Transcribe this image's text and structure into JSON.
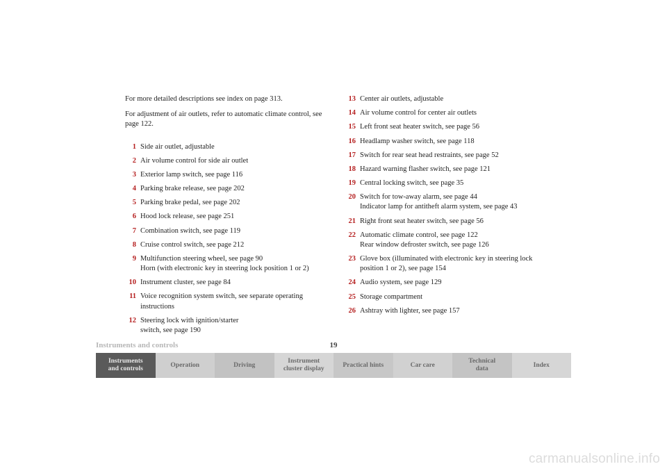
{
  "colors": {
    "accent": "#b51f1f",
    "text": "#222222",
    "footer_label": "#b7b7b7",
    "tab_text": "#6a6a6a",
    "tab_active_bg": "#5a5a5a",
    "tab_active_text": "#e8e8e8",
    "watermark": "#dcdcdc",
    "tab_shades": [
      "#5a5a5a",
      "#cfcfcf",
      "#c2c2c2",
      "#d6d6d6",
      "#c7c7c7",
      "#d1d1d1",
      "#c4c4c4",
      "#d6d6d6"
    ]
  },
  "intro": {
    "p1": "For more detailed descriptions see index on page 313.",
    "p2": "For adjustment of air outlets, refer to automatic climate control, see page 122."
  },
  "left_items": [
    {
      "n": "1",
      "t": "Side air outlet, adjustable"
    },
    {
      "n": "2",
      "t": "Air volume control for side air outlet"
    },
    {
      "n": "3",
      "t": "Exterior lamp switch, see page 116"
    },
    {
      "n": "4",
      "t": "Parking brake release, see page 202"
    },
    {
      "n": "5",
      "t": "Parking brake pedal, see page 202"
    },
    {
      "n": "6",
      "t": "Hood lock release, see page 251"
    },
    {
      "n": "7",
      "t": "Combination switch, see page 119"
    },
    {
      "n": "8",
      "t": "Cruise control switch, see page 212"
    },
    {
      "n": "9",
      "t": "Multifunction steering wheel, see page 90\nHorn (with electronic key in steering lock position 1 or 2)"
    },
    {
      "n": "10",
      "t": "Instrument cluster, see page 84"
    },
    {
      "n": "11",
      "t": "Voice recognition system switch, see separate operating instructions"
    },
    {
      "n": "12",
      "t": "Steering lock with ignition/starter\nswitch, see page 190"
    }
  ],
  "right_items": [
    {
      "n": "13",
      "t": "Center air outlets, adjustable"
    },
    {
      "n": "14",
      "t": "Air volume control for center air outlets"
    },
    {
      "n": "15",
      "t": "Left front seat heater switch, see page 56"
    },
    {
      "n": "16",
      "t": "Headlamp washer switch, see page 118"
    },
    {
      "n": "17",
      "t": "Switch for rear seat head restraints, see page 52"
    },
    {
      "n": "18",
      "t": "Hazard warning flasher switch, see page 121"
    },
    {
      "n": "19",
      "t": "Central locking switch, see page 35"
    },
    {
      "n": "20",
      "t": "Switch for tow-away alarm, see page 44\nIndicator lamp for antitheft alarm system, see page 43"
    },
    {
      "n": "21",
      "t": "Right front seat heater switch, see page 56"
    },
    {
      "n": "22",
      "t": "Automatic climate control, see page 122\nRear window defroster switch, see page 126"
    },
    {
      "n": "23",
      "t": "Glove box (illuminated with electronic key in steering lock position 1 or 2), see page 154"
    },
    {
      "n": "24",
      "t": "Audio system, see page 129"
    },
    {
      "n": "25",
      "t": "Storage compartment"
    },
    {
      "n": "26",
      "t": "Ashtray with lighter, see page 157"
    }
  ],
  "footer": {
    "title": "Instruments and controls",
    "page": "19"
  },
  "tabs": [
    "Instruments\nand controls",
    "Operation",
    "Driving",
    "Instrument\ncluster display",
    "Practical hints",
    "Car care",
    "Technical\ndata",
    "Index"
  ],
  "watermark": "carmanualsonline.info"
}
